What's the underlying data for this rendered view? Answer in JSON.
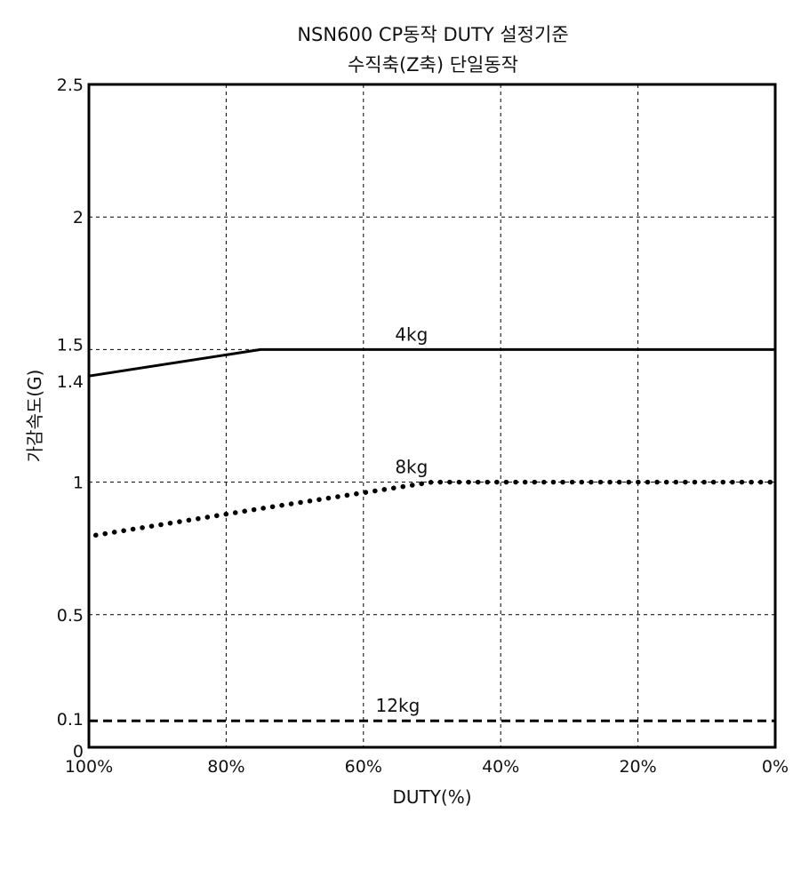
{
  "chart_data": {
    "type": "line",
    "title": "NSN600 CP동작 DUTY 설정기준",
    "subtitle": "수직축(Z축) 단일동작",
    "xlabel": "DUTY(%)",
    "ylabel": "가감속도(G)",
    "xlim": [
      100,
      0
    ],
    "ylim": [
      0,
      2.5
    ],
    "x_ticks": [
      {
        "value": 100,
        "label": "100%"
      },
      {
        "value": 80,
        "label": "80%"
      },
      {
        "value": 60,
        "label": "60%"
      },
      {
        "value": 40,
        "label": "40%"
      },
      {
        "value": 20,
        "label": "20%"
      },
      {
        "value": 0,
        "label": "0%"
      }
    ],
    "y_ticks": [
      {
        "value": 0,
        "label": "0"
      },
      {
        "value": 0.1,
        "label": "0.1"
      },
      {
        "value": 0.5,
        "label": "0.5"
      },
      {
        "value": 1,
        "label": "1"
      },
      {
        "value": 1.4,
        "label": "1.4"
      },
      {
        "value": 1.5,
        "label": "1.5"
      },
      {
        "value": 2,
        "label": "2"
      },
      {
        "value": 2.5,
        "label": "2.5"
      }
    ],
    "grid": true,
    "grid_x": [
      80,
      60,
      40,
      20
    ],
    "grid_y": [
      0.5,
      1,
      1.5,
      2
    ],
    "series": [
      {
        "name": "4kg",
        "style": "solid",
        "color": "#000000",
        "x": [
          100,
          75,
          0
        ],
        "y": [
          1.4,
          1.5,
          1.5
        ],
        "label_at": [
          53,
          1.5
        ]
      },
      {
        "name": "8kg",
        "style": "dotted",
        "color": "#000000",
        "x": [
          99,
          75,
          50,
          0
        ],
        "y": [
          0.8,
          0.9,
          1.0,
          1.0
        ],
        "label_at": [
          53,
          1.0
        ]
      },
      {
        "name": "12kg",
        "style": "dashed",
        "color": "#000000",
        "x": [
          100,
          0
        ],
        "y": [
          0.1,
          0.1
        ],
        "label_at": [
          55,
          0.1
        ]
      }
    ]
  }
}
